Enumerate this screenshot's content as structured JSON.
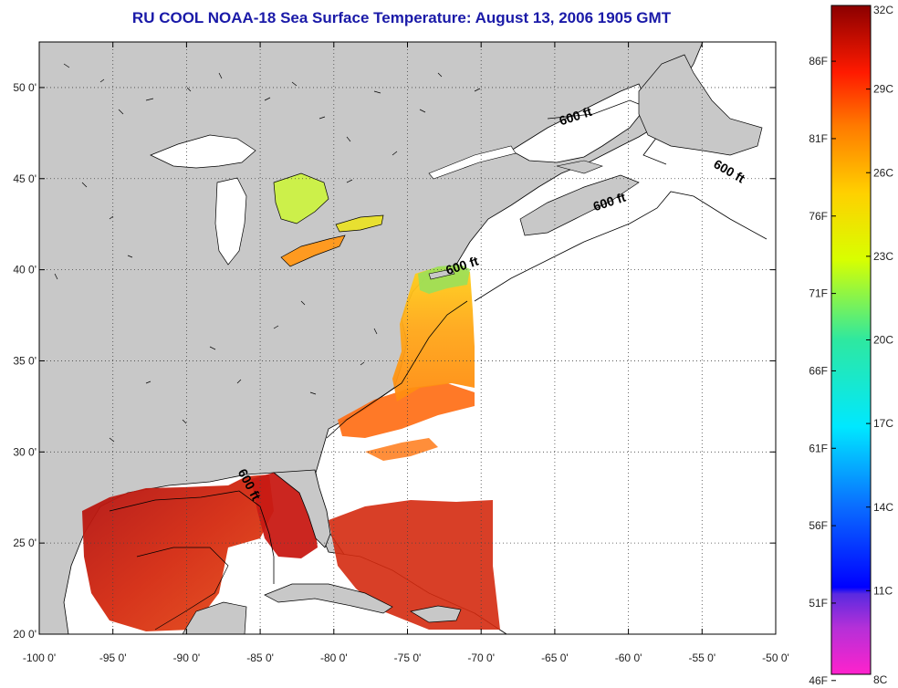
{
  "title": "RU COOL  NOAA-18  Sea Surface Temperature:  August 13, 2006 1905 GMT",
  "map": {
    "lon_range": [
      -100,
      -50
    ],
    "lat_range": [
      20,
      52.5
    ],
    "lon_ticks": [
      {
        "value": -100,
        "label": "-100 0'"
      },
      {
        "value": -95,
        "label": "-95 0'"
      },
      {
        "value": -90,
        "label": "-90 0'"
      },
      {
        "value": -85,
        "label": "-85 0'"
      },
      {
        "value": -80,
        "label": "-80 0'"
      },
      {
        "value": -75,
        "label": "-75 0'"
      },
      {
        "value": -70,
        "label": "-70 0'"
      },
      {
        "value": -65,
        "label": "-65 0'"
      },
      {
        "value": -60,
        "label": "-60 0'"
      },
      {
        "value": -55,
        "label": "-55 0'"
      },
      {
        "value": -50,
        "label": "-50 0'"
      }
    ],
    "lat_ticks": [
      {
        "value": 20,
        "label": "20 0'"
      },
      {
        "value": 25,
        "label": "25 0'"
      },
      {
        "value": 30,
        "label": "30 0'"
      },
      {
        "value": 35,
        "label": "35 0'"
      },
      {
        "value": 40,
        "label": "40 0'"
      },
      {
        "value": 45,
        "label": "45 0'"
      },
      {
        "value": 50,
        "label": "50 0'"
      }
    ],
    "grid": true,
    "contour_labels": [
      {
        "text": "600 ft",
        "lon": -63.5,
        "lat": 48.2
      },
      {
        "text": "600 ft",
        "lon": -53.3,
        "lat": 45.2
      },
      {
        "text": "600 ft",
        "lon": -61.2,
        "lat": 43.5
      },
      {
        "text": "600 ft",
        "lon": -71.2,
        "lat": 40.0
      },
      {
        "text": "600 ft",
        "lon": -86.0,
        "lat": 28.1
      }
    ],
    "colors": {
      "land": "#c8c8c8",
      "no_data": "#ffffff",
      "coastline": "#000000",
      "title": "#1a1aa8"
    }
  },
  "colorbar": {
    "celsius": [
      {
        "value": 32,
        "label": "32C"
      },
      {
        "value": 29,
        "label": "29C"
      },
      {
        "value": 26,
        "label": "26C"
      },
      {
        "value": 23,
        "label": "23C"
      },
      {
        "value": 20,
        "label": "20C"
      },
      {
        "value": 17,
        "label": "17C"
      },
      {
        "value": 14,
        "label": "14C"
      },
      {
        "value": 11,
        "label": "11C"
      },
      {
        "value": 8,
        "label": "8C"
      }
    ],
    "fahrenheit": [
      {
        "value": 86,
        "label": "86F"
      },
      {
        "value": 81,
        "label": "81F"
      },
      {
        "value": 76,
        "label": "76F"
      },
      {
        "value": 71,
        "label": "71F"
      },
      {
        "value": 66,
        "label": "66F"
      },
      {
        "value": 61,
        "label": "61F"
      },
      {
        "value": 56,
        "label": "56F"
      },
      {
        "value": 51,
        "label": "51F"
      },
      {
        "value": 46,
        "label": "46F"
      }
    ],
    "range_c": [
      8,
      32
    ],
    "range_f": [
      46.4,
      89.6
    ]
  }
}
